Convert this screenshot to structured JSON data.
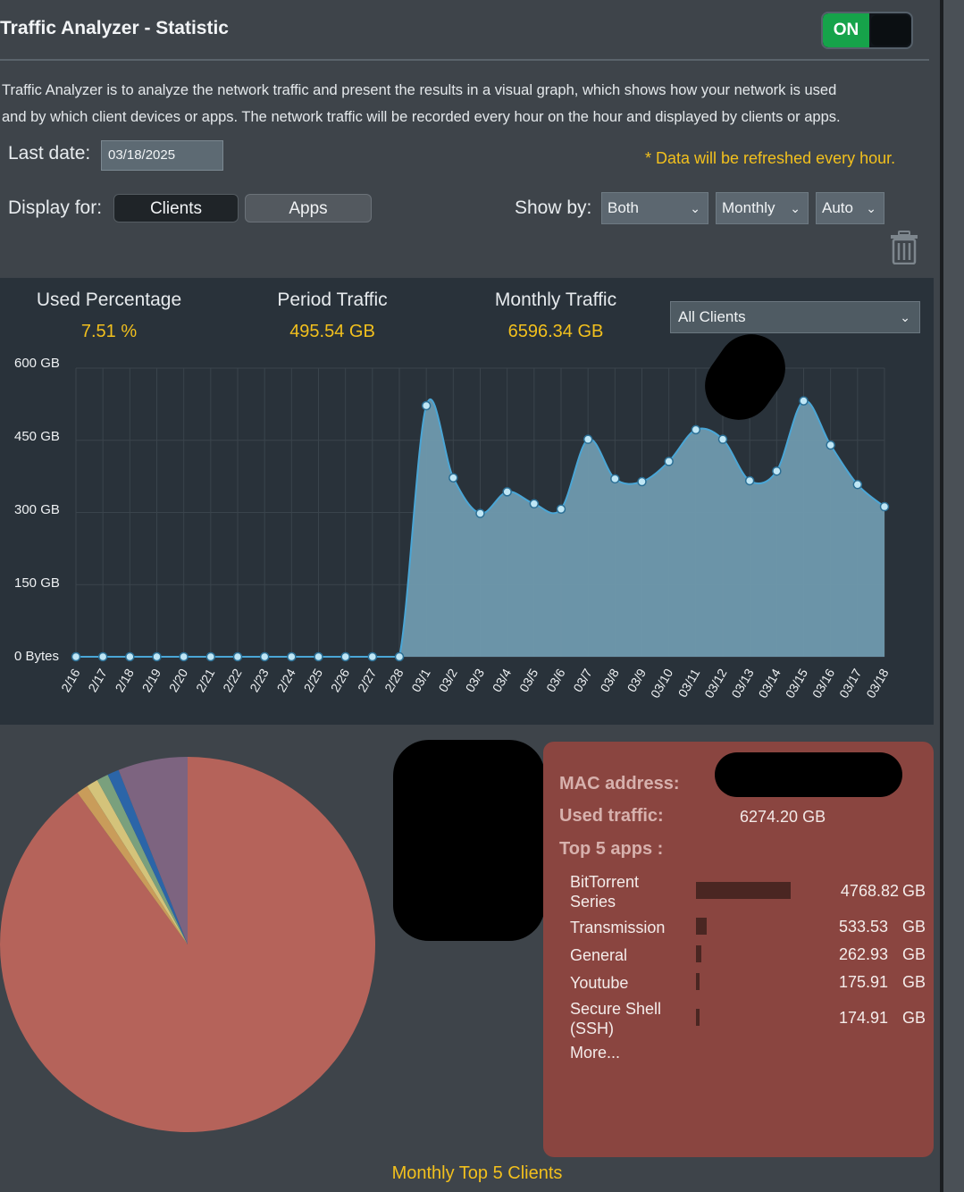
{
  "header": {
    "title": "Traffic Analyzer - Statistic",
    "toggle_label": "ON"
  },
  "description": [
    "Traffic Analyzer is to analyze the network traffic and present the results in a visual graph, which shows how your network is used",
    "and by which client devices or apps. The network traffic will be recorded every hour on the hour and displayed by clients or apps."
  ],
  "controls": {
    "last_date_label": "Last date:",
    "last_date_value": "03/18/2025",
    "refresh_note": "* Data will be refreshed every hour.",
    "display_for_label": "Display for:",
    "display_for_options": [
      "Clients",
      "Apps"
    ],
    "show_by_label": "Show by:",
    "show_by_selects": [
      "Both",
      "Monthly",
      "Auto"
    ],
    "delete_icon": "trash-icon"
  },
  "stats": [
    {
      "label": "Used Percentage",
      "value": "7.51 %"
    },
    {
      "label": "Period Traffic",
      "value": "495.54 GB"
    },
    {
      "label": "Monthly Traffic",
      "value": "6596.34 GB"
    }
  ],
  "client_select": "All Clients",
  "chart_data": {
    "type": "area",
    "y_ticks": [
      "600 GB",
      "450 GB",
      "300 GB",
      "150 GB",
      "0 Bytes"
    ],
    "ylim": [
      0,
      600
    ],
    "unit": "GB",
    "grid": true,
    "x": [
      "2/16",
      "2/17",
      "2/18",
      "2/19",
      "2/20",
      "2/21",
      "2/22",
      "2/23",
      "2/24",
      "2/25",
      "2/26",
      "2/27",
      "2/28",
      "03/1",
      "03/2",
      "03/3",
      "03/4",
      "03/5",
      "03/6",
      "03/7",
      "03/8",
      "03/9",
      "03/10",
      "03/11",
      "03/12",
      "03/13",
      "03/14",
      "03/15",
      "03/16",
      "03/17",
      "03/18"
    ],
    "values": [
      0,
      0,
      0,
      0,
      0,
      0,
      0,
      0,
      0,
      0,
      0,
      0,
      0,
      522,
      372,
      298,
      343,
      318,
      307,
      452,
      370,
      364,
      406,
      472,
      452,
      366,
      386,
      532,
      440,
      358,
      312
    ],
    "fill_color": "#6f9aae",
    "point_color": "#bfe6f5"
  },
  "pie_data": {
    "type": "pie",
    "caption": "Monthly Top 5 Clients",
    "slices": [
      {
        "value": 90.0,
        "color": "#b5635a"
      },
      {
        "value": 1.0,
        "color": "#c99c5a"
      },
      {
        "value": 1.0,
        "color": "#d4c37a"
      },
      {
        "value": 1.0,
        "color": "#7aa07d"
      },
      {
        "value": 1.0,
        "color": "#2b65a8"
      },
      {
        "value": 6.0,
        "color": "#7d6480"
      }
    ]
  },
  "info": {
    "mac_label": "MAC address:",
    "used_label": "Used traffic:",
    "used_value": "6274.20 GB",
    "top_apps_label": "Top 5 apps :",
    "apps": [
      {
        "name_lines": [
          "BitTorrent",
          "Series"
        ],
        "value": "4768.82",
        "unit": "GB",
        "fraction": 1.0
      },
      {
        "name_lines": [
          "Transmission"
        ],
        "value": "533.53",
        "unit": "GB",
        "fraction": 0.112
      },
      {
        "name_lines": [
          "General"
        ],
        "value": "262.93",
        "unit": "GB",
        "fraction": 0.055
      },
      {
        "name_lines": [
          "Youtube"
        ],
        "value": "175.91",
        "unit": "GB",
        "fraction": 0.037
      },
      {
        "name_lines": [
          "Secure Shell",
          "(SSH)"
        ],
        "value": "174.91",
        "unit": "GB",
        "fraction": 0.037
      }
    ],
    "more_label": "More..."
  }
}
